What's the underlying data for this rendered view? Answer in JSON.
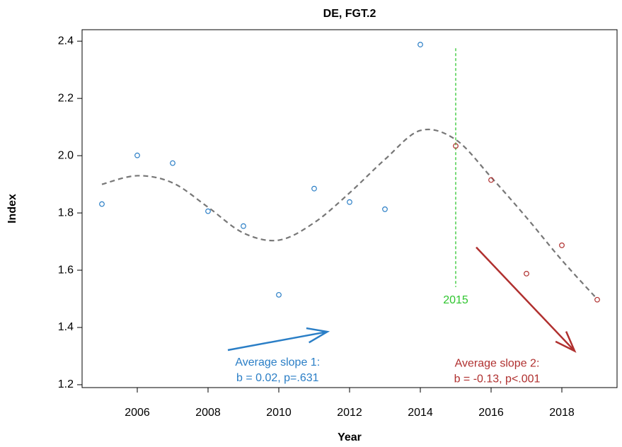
{
  "chart_data": {
    "type": "scatter",
    "title": "DE, FGT.2",
    "xlabel": "Year",
    "ylabel": "Index",
    "xlim": [
      2004.44,
      2019.56
    ],
    "ylim": [
      1.19,
      2.44
    ],
    "xticks": [
      2006,
      2008,
      2010,
      2012,
      2014,
      2016,
      2018
    ],
    "yticks": [
      1.2,
      1.4,
      1.6,
      1.8,
      {
        "value": 2.0,
        "label": "2.0"
      },
      2.2,
      2.4
    ],
    "series": [
      {
        "color": "#2a7ec6",
        "x": [
          2005,
          2006,
          2007,
          2008,
          2009,
          2010,
          2011,
          2012,
          2013,
          2014
        ],
        "values": [
          1.831,
          2.001,
          1.974,
          1.806,
          1.754,
          1.514,
          1.885,
          1.838,
          1.813,
          2.388
        ]
      },
      {
        "color": "#b0302f",
        "x": [
          2015,
          2016,
          2017,
          2018,
          2019
        ],
        "values": [
          2.034,
          1.915,
          1.588,
          1.687,
          1.497
        ]
      }
    ],
    "trend": {
      "color": "#777777",
      "x": [
        2005,
        2006,
        2007,
        2008,
        2009,
        2010,
        2011,
        2012,
        2013,
        2014,
        2015,
        2016,
        2017,
        2018,
        2019
      ],
      "values": [
        1.9,
        1.93,
        1.905,
        1.82,
        1.73,
        1.705,
        1.766,
        1.87,
        1.987,
        2.088,
        2.056,
        1.925,
        1.784,
        1.635,
        1.499
      ]
    },
    "vline": {
      "x": 2015,
      "ymin": 1.541,
      "ymax": 2.375,
      "color": "#2ec52e",
      "label": "2015"
    },
    "annotations": [
      {
        "color": "#2a7ec6",
        "x0": 2008.56,
        "y0": 1.321,
        "x1": 2011.37,
        "y1": 1.385,
        "lines": [
          "Average slope 1:",
          "b = 0.02, p=.631"
        ]
      },
      {
        "color": "#b0302f",
        "x0": 2015.58,
        "y0": 1.68,
        "x1": 2018.36,
        "y1": 1.318,
        "lines": [
          "Average slope 2:",
          "b = -0.13, p<.001"
        ]
      }
    ]
  }
}
